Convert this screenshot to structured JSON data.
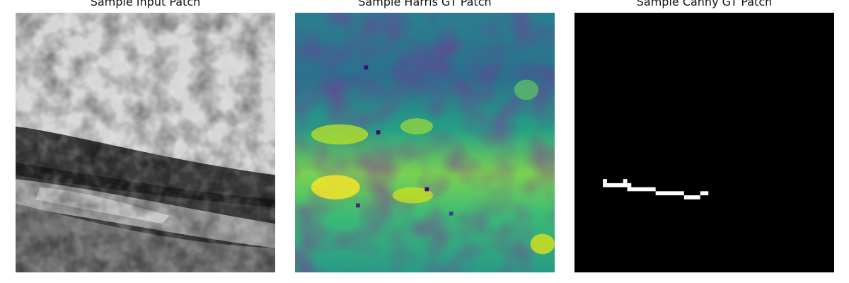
{
  "panels": [
    {
      "title": "Sample Input Patch",
      "kind": "grayscale",
      "colormap": "gray"
    },
    {
      "title": "Sample Harris GT Patch",
      "kind": "heatmap",
      "colormap": "viridis"
    },
    {
      "title": "Sample Canny GT Patch",
      "kind": "binary-edge",
      "colormap": "gray"
    }
  ]
}
